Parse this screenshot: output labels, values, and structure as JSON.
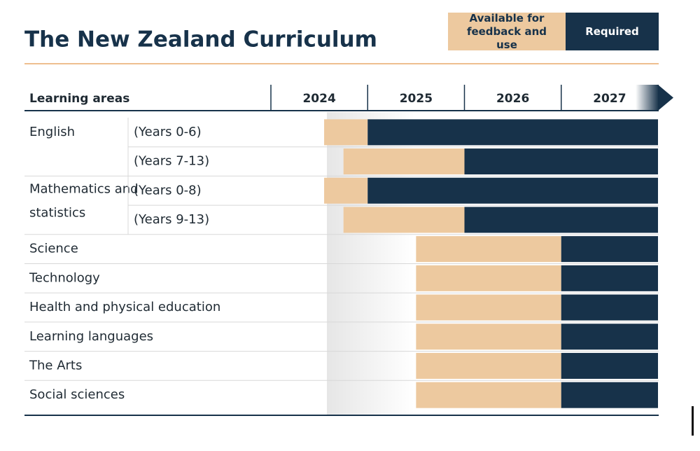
{
  "chart_data": {
    "type": "gantt",
    "title": "The New Zealand Curriculum",
    "category_label": "Learning areas",
    "categories": [
      "English",
      "Mathematics and statistics",
      "Science",
      "Technology",
      "Health and physical education",
      "Learning languages",
      "The Arts",
      "Social sciences"
    ],
    "subcategories": [
      [
        "(Years 0-6)",
        "(Years 7-13)"
      ],
      [
        "(Years 0-8)",
        "(Years 9-13)"
      ],
      [],
      [],
      [],
      [],
      [],
      []
    ],
    "xlim": [
      2024,
      2028
    ],
    "xticks": [
      {
        "value": 2024.5,
        "label": "2024"
      },
      {
        "value": 2025.5,
        "label": "2025"
      },
      {
        "value": 2026.5,
        "label": "2026"
      },
      {
        "value": 2027.5,
        "label": "2027"
      }
    ],
    "series": [
      {
        "name": "Available for feedback and use",
        "color": "#edc99f",
        "start": [
          2024.55,
          2024.75,
          2024.55,
          2024.75,
          2025.5,
          2025.5,
          2025.5,
          2025.5,
          2025.5,
          2025.5
        ],
        "end": [
          2025,
          2026,
          2025,
          2026,
          2027,
          2027,
          2027,
          2027,
          2027,
          2027
        ]
      },
      {
        "name": "Required",
        "color": "#17324a",
        "start": [
          2025,
          2026,
          2025,
          2026,
          2027,
          2027,
          2027,
          2027,
          2027,
          2027
        ],
        "end": [
          2028,
          2028,
          2028,
          2028,
          2028,
          2028,
          2028,
          2028,
          2028,
          2028
        ]
      }
    ]
  }
}
